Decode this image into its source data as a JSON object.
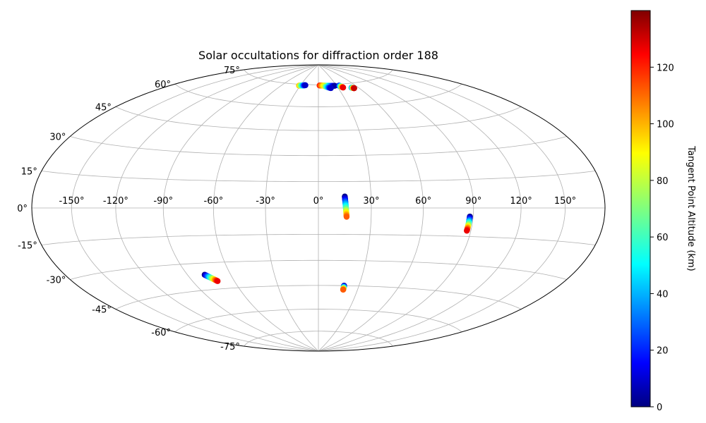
{
  "chart_data": {
    "type": "scatter",
    "projection": "hammer",
    "title": "Solar occultations for diffraction order 188",
    "lon_ticks": [
      "-150°",
      "-120°",
      "-90°",
      "-60°",
      "-30°",
      "0°",
      "30°",
      "60°",
      "90°",
      "120°",
      "150°"
    ],
    "lat_ticks": [
      "-75°",
      "-60°",
      "-45°",
      "-30°",
      "-15°",
      "0°",
      "15°",
      "30°",
      "45°",
      "60°",
      "75°"
    ],
    "grid": true,
    "colorbar": {
      "label": "Tangent Point Altitude (km)",
      "colormap": "jet",
      "range": [
        0,
        140
      ],
      "ticks": [
        "0",
        "20",
        "40",
        "60",
        "80",
        "100",
        "120"
      ]
    },
    "tracks": [
      {
        "lon_start": -78,
        "lat_start": -36.5,
        "lon_end": -72,
        "lat_end": -40.5,
        "alt_start": 0,
        "alt_end": 125
      },
      {
        "lon_start": 15,
        "lat_start": 6.5,
        "lon_end": 16,
        "lat_end": -5,
        "alt_start": 0,
        "alt_end": 110
      },
      {
        "lon_start": 88,
        "lat_start": -4.5,
        "lon_end": 87.5,
        "lat_end": -12,
        "alt_start": 0,
        "alt_end": 125
      },
      {
        "lon_start": 19,
        "lat_start": -45,
        "lon_end": 19,
        "lat_end": -47.5,
        "alt_start": 0,
        "alt_end": 110
      },
      {
        "lon_start": -32,
        "lat_start": 74,
        "lon_end": -22,
        "lat_end": 74.5,
        "alt_start": 100,
        "alt_end": 10
      },
      {
        "lon_start": 2,
        "lat_start": 74.5,
        "lon_end": 27,
        "lat_end": 74,
        "alt_start": 120,
        "alt_end": 5
      },
      {
        "lon_start": 10,
        "lat_start": 74,
        "lon_end": 19,
        "lat_end": 72.5,
        "alt_start": 90,
        "alt_end": 10
      },
      {
        "lon_start": 34,
        "lat_start": 74,
        "lon_end": 38,
        "lat_end": 72.5,
        "alt_start": 10,
        "alt_end": 125
      },
      {
        "lon_start": 50,
        "lat_start": 72,
        "lon_end": 53,
        "lat_end": 71.5,
        "alt_start": 30,
        "alt_end": 130
      }
    ]
  }
}
